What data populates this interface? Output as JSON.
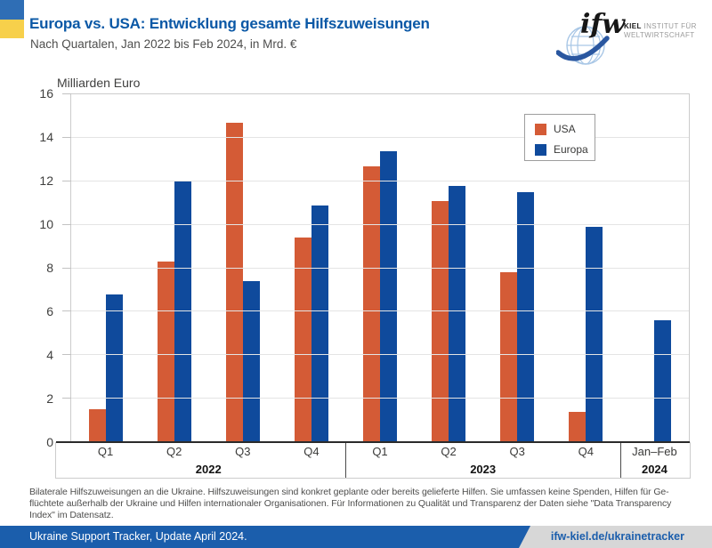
{
  "header": {
    "title": "Europa vs. USA: Entwicklung gesamte Hilfszuweisungen",
    "subtitle": "Nach Quartalen, Jan 2022 bis Feb 2024, in Mrd. €",
    "logo": {
      "wordmark": "ifw",
      "kiel": "KIEL",
      "line1_rest": " INSTITUT FÜR",
      "line2": "WELTWIRTSCHAFT"
    }
  },
  "colors": {
    "usa": "#d45b36",
    "europa": "#0f4a9c",
    "title_blue": "#0a58a6",
    "footer_blue": "#1b5eac",
    "footer_gray": "#d7d7d7",
    "flag_blue": "#2f6eb5",
    "flag_yellow": "#f7d04b",
    "text_gray": "#4e4e4d",
    "grid": "#e4e4e4",
    "frame": "#cccccc",
    "axis": "#2b2b2b",
    "legend_border": "#9e9e9e"
  },
  "chart_data": {
    "type": "bar",
    "title": "Milliarden Euro",
    "xlabel": "",
    "ylabel": "Milliarden Euro",
    "ylim": [
      0,
      16
    ],
    "ytick_step": 2,
    "grid": true,
    "legend_position": "upper-right-inside",
    "categories": [
      "Q1",
      "Q2",
      "Q3",
      "Q4",
      "Q1",
      "Q2",
      "Q3",
      "Q4",
      "Jan–Feb"
    ],
    "groups": [
      {
        "label": "2022",
        "span": 4
      },
      {
        "label": "2023",
        "span": 4
      },
      {
        "label": "2024",
        "span": 1
      }
    ],
    "series": [
      {
        "name": "USA",
        "color_key": "usa",
        "values": [
          1.5,
          8.3,
          14.7,
          9.4,
          12.7,
          11.1,
          7.8,
          1.4,
          null
        ]
      },
      {
        "name": "Europa",
        "color_key": "europa",
        "values": [
          6.8,
          12.0,
          7.4,
          10.9,
          13.4,
          11.8,
          11.5,
          9.9,
          5.6
        ]
      }
    ]
  },
  "footnote": {
    "lines": [
      "Bilaterale Hilfszuweisungen an die Ukraine. Hilfszuweisungen sind konkret geplante oder bereits gelieferte Hilfen. Sie umfassen keine Spenden, Hilfen für Ge-",
      "flüchtete außerhalb der Ukraine und Hilfen internationaler Organisationen. Für Informationen zu Qualität und Transparenz der Daten siehe \"Data Transparency",
      "Index\" im Datensatz."
    ]
  },
  "footer": {
    "left": "Ukraine Support Tracker, Update April 2024.",
    "right": "ifw-kiel.de/ukrainetracker"
  }
}
